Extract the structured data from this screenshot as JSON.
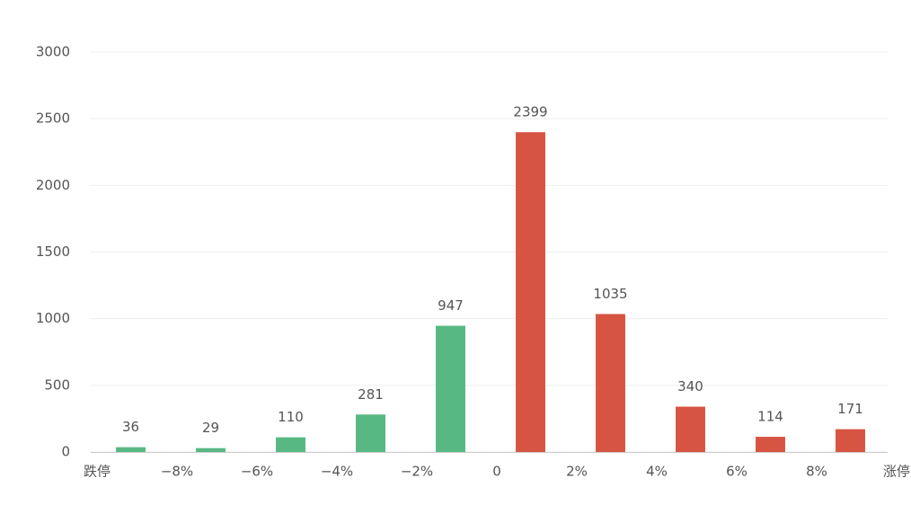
{
  "chart_data": {
    "type": "histogram",
    "bins": [
      {
        "value": -10,
        "label": "跌停"
      },
      {
        "value": -8,
        "label": "−8%"
      },
      {
        "value": -6,
        "label": "−6%"
      },
      {
        "value": -4,
        "label": "−4%"
      },
      {
        "value": -2,
        "label": "−2%"
      },
      0,
      {
        "value": 2,
        "label": "2%"
      },
      {
        "value": 4,
        "label": "4%"
      },
      {
        "value": 6,
        "label": "6%"
      },
      {
        "value": 8,
        "label": "8%"
      },
      {
        "value": 10,
        "label": "涨停"
      }
    ],
    "values": [
      36,
      29,
      110,
      281,
      947,
      2399,
      1035,
      340,
      114,
      171
    ],
    "colors": [
      "#57b883",
      "#57b883",
      "#57b883",
      "#57b883",
      "#57b883",
      "#d75442",
      "#d75442",
      "#d75442",
      "#d75442",
      "#d75442"
    ],
    "xlim": [
      -10,
      10
    ],
    "ylim": [
      0,
      3000
    ],
    "yticks": [
      0,
      500,
      1000,
      1500,
      2000,
      2500,
      3000
    ],
    "grid": true
  }
}
